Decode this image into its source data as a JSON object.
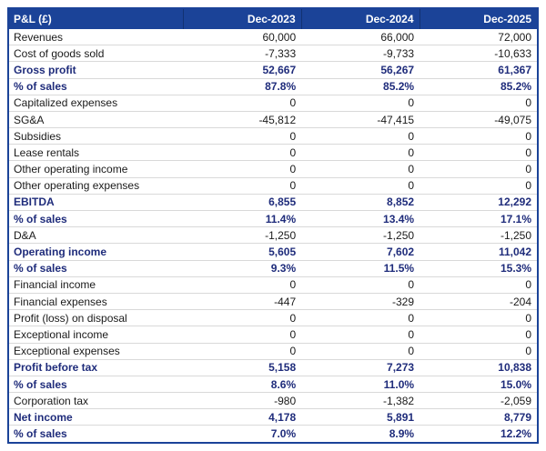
{
  "colors": {
    "header_bg": "#1b4398",
    "header_text": "#ffffff",
    "bold_row_text": "#1f2c7b",
    "regular_text": "#1a1a1a",
    "outer_border": "#1b4398",
    "row_divider": "#d9d9d9"
  },
  "table": {
    "columns": [
      "P&L (£)",
      "Dec-2023",
      "Dec-2024",
      "Dec-2025"
    ],
    "rows": [
      {
        "label": "Revenues",
        "values": [
          "60,000",
          "66,000",
          "72,000"
        ],
        "bold": false
      },
      {
        "label": "Cost of goods sold",
        "values": [
          "-7,333",
          "-9,733",
          "-10,633"
        ],
        "bold": false
      },
      {
        "label": "Gross profit",
        "values": [
          "52,667",
          "56,267",
          "61,367"
        ],
        "bold": true
      },
      {
        "label": "% of sales",
        "values": [
          "87.8%",
          "85.2%",
          "85.2%"
        ],
        "bold": true
      },
      {
        "label": "Capitalized expenses",
        "values": [
          "0",
          "0",
          "0"
        ],
        "bold": false
      },
      {
        "label": "SG&A",
        "values": [
          "-45,812",
          "-47,415",
          "-49,075"
        ],
        "bold": false
      },
      {
        "label": "Subsidies",
        "values": [
          "0",
          "0",
          "0"
        ],
        "bold": false
      },
      {
        "label": "Lease rentals",
        "values": [
          "0",
          "0",
          "0"
        ],
        "bold": false
      },
      {
        "label": "Other operating income",
        "values": [
          "0",
          "0",
          "0"
        ],
        "bold": false
      },
      {
        "label": "Other operating expenses",
        "values": [
          "0",
          "0",
          "0"
        ],
        "bold": false
      },
      {
        "label": "EBITDA",
        "values": [
          "6,855",
          "8,852",
          "12,292"
        ],
        "bold": true
      },
      {
        "label": "% of sales",
        "values": [
          "11.4%",
          "13.4%",
          "17.1%"
        ],
        "bold": true
      },
      {
        "label": "D&A",
        "values": [
          "-1,250",
          "-1,250",
          "-1,250"
        ],
        "bold": false
      },
      {
        "label": "Operating income",
        "values": [
          "5,605",
          "7,602",
          "11,042"
        ],
        "bold": true
      },
      {
        "label": "% of sales",
        "values": [
          "9.3%",
          "11.5%",
          "15.3%"
        ],
        "bold": true
      },
      {
        "label": "Financial income",
        "values": [
          "0",
          "0",
          "0"
        ],
        "bold": false
      },
      {
        "label": "Financial expenses",
        "values": [
          "-447",
          "-329",
          "-204"
        ],
        "bold": false
      },
      {
        "label": "Profit (loss) on disposal",
        "values": [
          "0",
          "0",
          "0"
        ],
        "bold": false
      },
      {
        "label": "Exceptional income",
        "values": [
          "0",
          "0",
          "0"
        ],
        "bold": false
      },
      {
        "label": "Exceptional expenses",
        "values": [
          "0",
          "0",
          "0"
        ],
        "bold": false
      },
      {
        "label": "Profit before tax",
        "values": [
          "5,158",
          "7,273",
          "10,838"
        ],
        "bold": true
      },
      {
        "label": "% of sales",
        "values": [
          "8.6%",
          "11.0%",
          "15.0%"
        ],
        "bold": true
      },
      {
        "label": "Corporation tax",
        "values": [
          "-980",
          "-1,382",
          "-2,059"
        ],
        "bold": false
      },
      {
        "label": "Net income",
        "values": [
          "4,178",
          "5,891",
          "8,779"
        ],
        "bold": true
      },
      {
        "label": "% of sales",
        "values": [
          "7.0%",
          "8.9%",
          "12.2%"
        ],
        "bold": true
      }
    ]
  }
}
